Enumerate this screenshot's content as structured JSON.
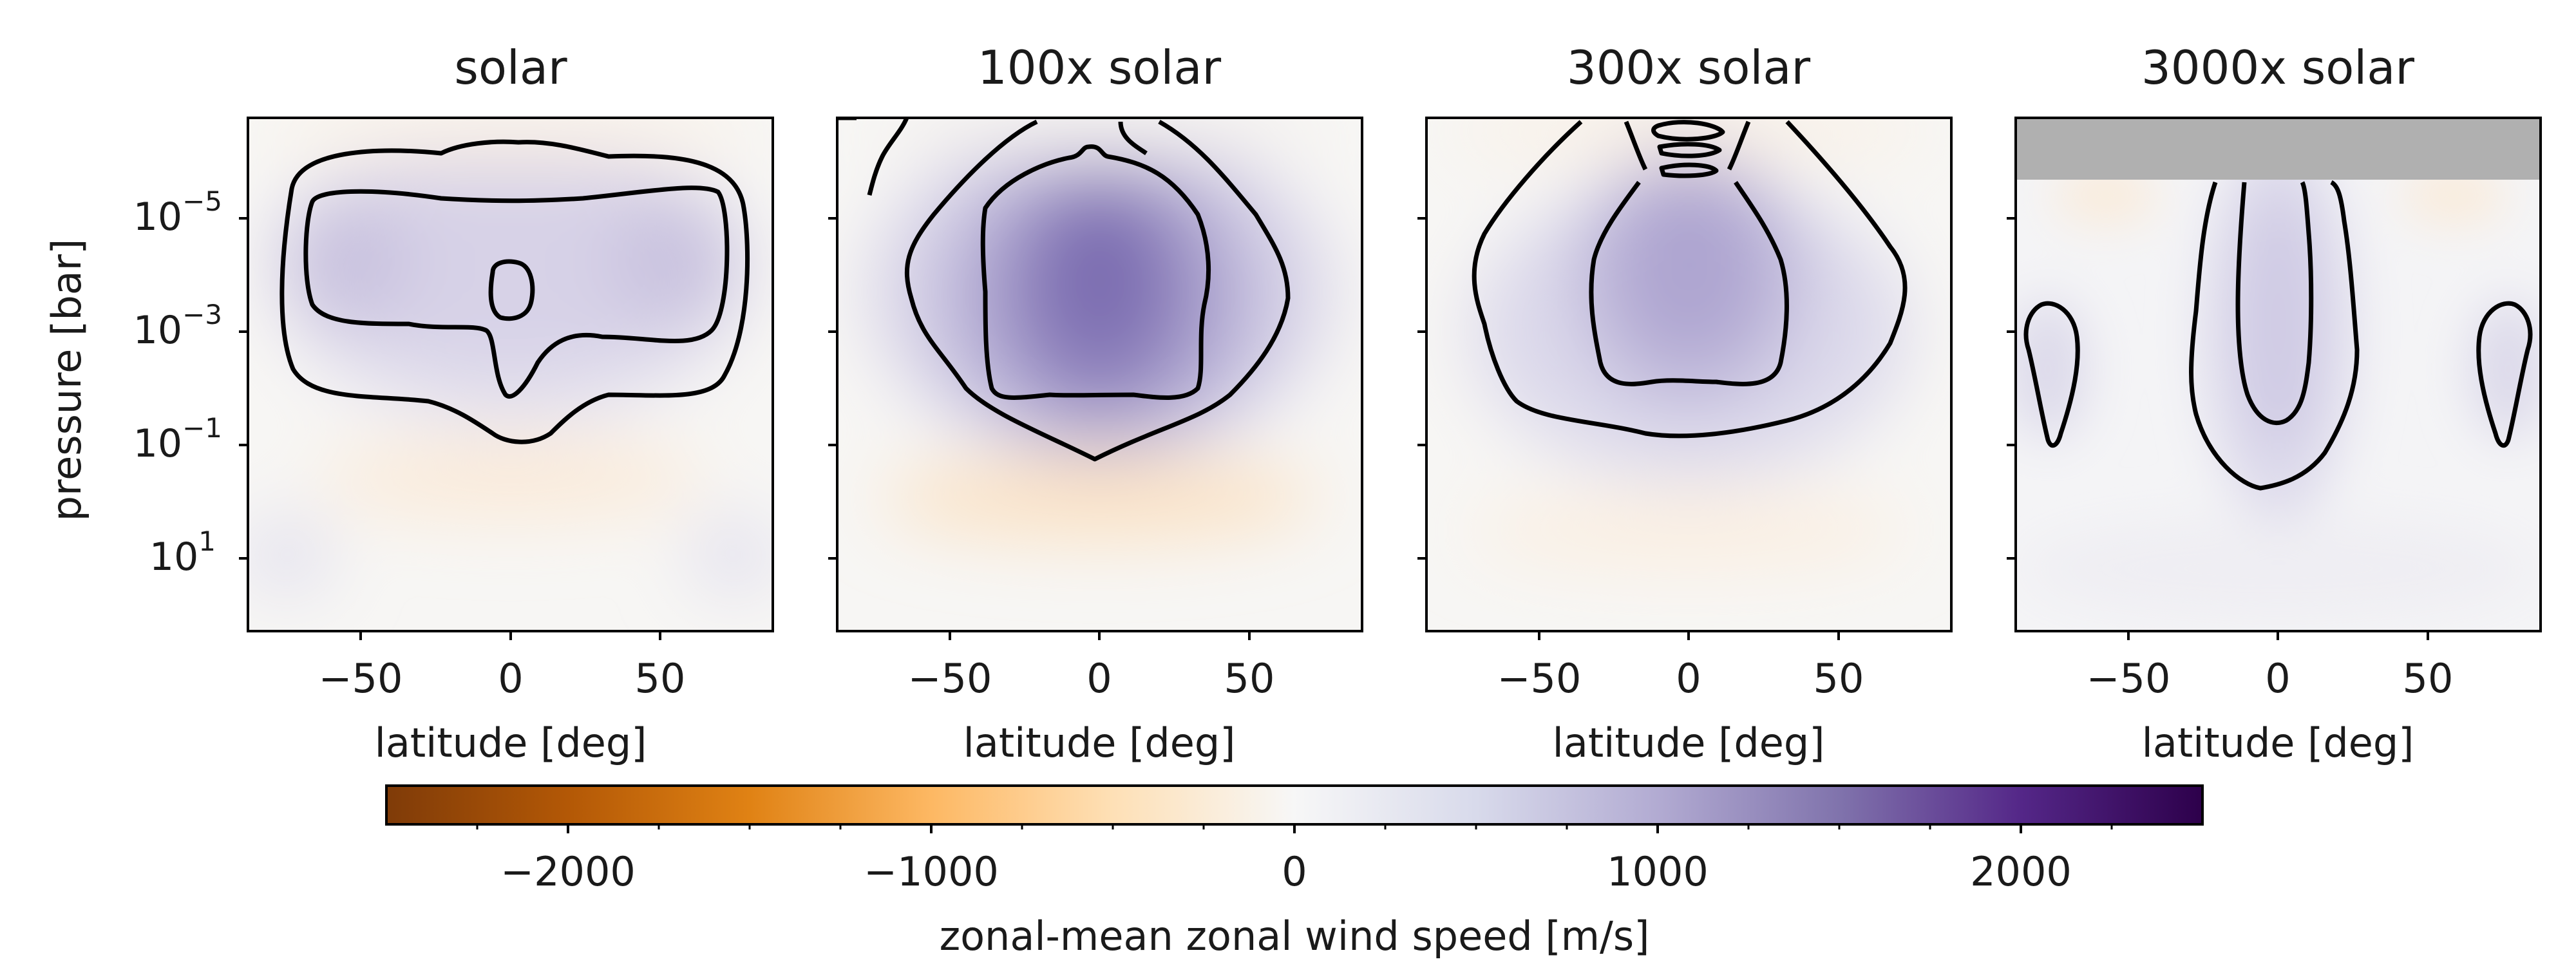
{
  "chart_data": {
    "type": "heatmap",
    "panels": [
      {
        "title": "solar",
        "contour_centers": [
          {
            "lat": 0,
            "p": 0.0004
          }
        ]
      },
      {
        "title": "100x solar",
        "contour_centers": [
          {
            "lat": 0,
            "p": 0.001
          }
        ]
      },
      {
        "title": "300x solar",
        "contour_centers": [
          {
            "lat": 0,
            "p": 0.0005
          }
        ]
      },
      {
        "title": "3000x solar",
        "contour_centers": [
          {
            "lat": 0,
            "p": 0.003
          },
          {
            "lat": -75,
            "p": 0.01
          },
          {
            "lat": 75,
            "p": 0.01
          }
        ]
      }
    ],
    "xlabel": "latitude [deg]",
    "ylabel": "pressure [bar]",
    "xlim": [
      -88,
      88
    ],
    "ylim_log10": [
      -7.5,
      2.3
    ],
    "y_scale": "log",
    "y_inverted": true,
    "xticks": [
      -50,
      0,
      50
    ],
    "xtick_labels": [
      "−50",
      "0",
      "50"
    ],
    "yticks_log10": [
      -5,
      -3,
      -1,
      1
    ],
    "ytick_labels": [
      {
        "base": "10",
        "exp": "−5"
      },
      {
        "base": "10",
        "exp": "−3"
      },
      {
        "base": "10",
        "exp": "−1"
      },
      {
        "base": "10",
        "exp": "1"
      }
    ],
    "masked_region_3000x": {
      "p_min_log10": -7.5,
      "p_max_log10": -6.2,
      "color": "#b0b0b0"
    },
    "colorbar": {
      "label": "zonal-mean zonal wind speed [m/s]",
      "range": [
        -2500,
        2500
      ],
      "ticks": [
        -2000,
        -1000,
        0,
        1000,
        2000
      ],
      "tick_labels": [
        "−2000",
        "−1000",
        "0",
        "1000",
        "2000"
      ],
      "colormap": "PuOr_r",
      "stops": [
        "#7f3b08",
        "#b35806",
        "#e08214",
        "#fdb863",
        "#fee0b6",
        "#f7f7f7",
        "#d8daeb",
        "#b2abd2",
        "#8073ac",
        "#542788",
        "#2d004b"
      ]
    }
  }
}
